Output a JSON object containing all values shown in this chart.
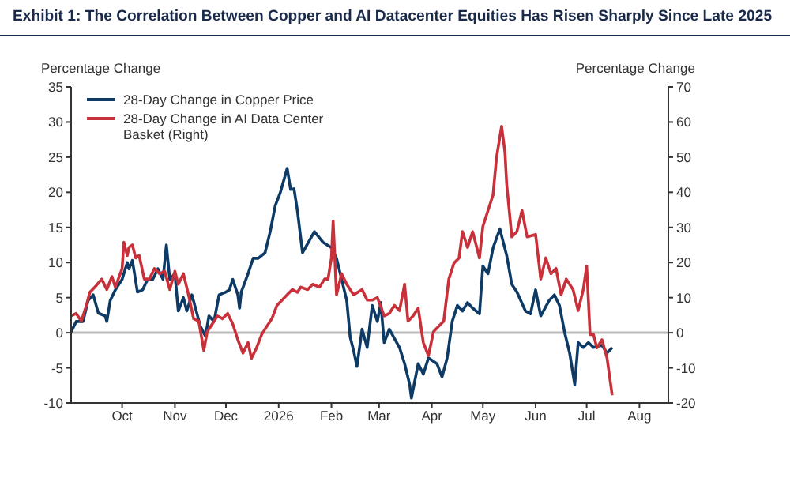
{
  "chart_data": {
    "type": "line",
    "title": "Exhibit 1: The Correlation Between Copper and AI Datacenter Equities Has Risen Sharply Since Late 2025",
    "ylabel": "Percentage Change",
    "y2label": "Percentage Change",
    "legend": "top left",
    "marker": "none",
    "grid": false,
    "xlim": [
      "2025-09-01",
      "2026-08-18"
    ],
    "xticks": [
      {
        "value": "2025-10-01",
        "label": "Oct"
      },
      {
        "value": "2025-11-01",
        "label": "Nov"
      },
      {
        "value": "2025-12-01",
        "label": "Dec"
      },
      {
        "value": "2026-01-01",
        "label": "2026"
      },
      {
        "value": "2026-02-01",
        "label": "Feb"
      },
      {
        "value": "2026-03-01",
        "label": "Mar"
      },
      {
        "value": "2026-04-01",
        "label": "Apr"
      },
      {
        "value": "2026-05-01",
        "label": "May"
      },
      {
        "value": "2026-06-01",
        "label": "Jun"
      },
      {
        "value": "2026-07-01",
        "label": "Jul"
      },
      {
        "value": "2026-08-01",
        "label": "Aug"
      }
    ],
    "ylim": [
      -10,
      35
    ],
    "yticks": [
      -10,
      -5,
      0,
      5,
      10,
      15,
      20,
      25,
      30,
      35
    ],
    "y2lim": [
      -20,
      70
    ],
    "y2ticks": [
      -20,
      -10,
      0,
      10,
      20,
      30,
      40,
      50,
      60,
      70
    ],
    "ref_lines": [
      {
        "axis": "y",
        "value": 0,
        "color": "#bbbbbb"
      }
    ],
    "series": [
      {
        "name": "28-Day Change in Copper Price",
        "color": "#0d3b66",
        "x": [
          "2025-09-01",
          "2025-09-04",
          "2025-09-08",
          "2025-09-11",
          "2025-09-14",
          "2025-09-17",
          "2025-09-21",
          "2025-09-22",
          "2025-09-24",
          "2025-09-27",
          "2025-10-01",
          "2025-10-04",
          "2025-10-05",
          "2025-10-07",
          "2025-10-10",
          "2025-10-13",
          "2025-10-16",
          "2025-10-19",
          "2025-10-22",
          "2025-10-25",
          "2025-10-27",
          "2025-10-29",
          "2025-11-01",
          "2025-11-03",
          "2025-11-06",
          "2025-11-08",
          "2025-11-11",
          "2025-11-16",
          "2025-11-19",
          "2025-11-21",
          "2025-11-24",
          "2025-11-27",
          "2025-12-01",
          "2025-12-03",
          "2025-12-05",
          "2025-12-08",
          "2025-12-09",
          "2025-12-10",
          "2025-12-14",
          "2025-12-17",
          "2025-12-20",
          "2025-12-24",
          "2025-12-27",
          "2025-12-30",
          "2026-01-02",
          "2026-01-06",
          "2026-01-08",
          "2026-01-10",
          "2026-01-12",
          "2026-01-15",
          "2026-01-22",
          "2026-01-27",
          "2026-02-01",
          "2026-02-04",
          "2026-02-07",
          "2026-02-10",
          "2026-02-12",
          "2026-02-14",
          "2026-02-16",
          "2026-02-19",
          "2026-02-22",
          "2026-02-25",
          "2026-02-28",
          "2026-03-02",
          "2026-03-04",
          "2026-03-07",
          "2026-03-13",
          "2026-03-16",
          "2026-03-19",
          "2026-03-20",
          "2026-03-24",
          "2026-03-27",
          "2026-03-30",
          "2026-04-04",
          "2026-04-07",
          "2026-04-10",
          "2026-04-13",
          "2026-04-16",
          "2026-04-19",
          "2026-04-22",
          "2026-04-25",
          "2026-04-29",
          "2026-05-01",
          "2026-05-04",
          "2026-05-07",
          "2026-05-11",
          "2026-05-12",
          "2026-05-15",
          "2026-05-18",
          "2026-05-21",
          "2026-05-26",
          "2026-05-29",
          "2026-06-01",
          "2026-06-04",
          "2026-06-09",
          "2026-06-12",
          "2026-06-15",
          "2026-06-18",
          "2026-06-21",
          "2026-06-24",
          "2026-06-26",
          "2026-06-29",
          "2026-07-02",
          "2026-07-05",
          "2026-07-10",
          "2026-07-13",
          "2026-07-16"
        ],
        "values": [
          0.1,
          1.6,
          1.6,
          4.6,
          5.4,
          2.8,
          2.4,
          1.6,
          4.6,
          6.1,
          7.6,
          10,
          9.1,
          10.3,
          5.8,
          6.1,
          7.6,
          7.6,
          9.1,
          7.6,
          12.5,
          7.6,
          8.4,
          3.1,
          5,
          3.1,
          5.4,
          0.9,
          -0.5,
          2.4,
          1.6,
          5.4,
          5.8,
          6.1,
          7.6,
          5.4,
          3.5,
          5.8,
          8.4,
          10.6,
          10.6,
          11.4,
          14.4,
          18.1,
          20,
          23.4,
          20.4,
          20.5,
          17.4,
          11.4,
          14.4,
          12.9,
          12.1,
          10.6,
          7.6,
          4.6,
          -0.6,
          -2.5,
          -4.8,
          0.5,
          -2.1,
          3.9,
          1.6,
          4.3,
          -1.4,
          0.5,
          -2.1,
          -4.4,
          -7.4,
          -9.3,
          -4.4,
          -5.9,
          -3.6,
          -4.4,
          -6.3,
          -3.6,
          1.6,
          3.9,
          3.1,
          4.3,
          3.5,
          2.7,
          9.5,
          8.4,
          12.1,
          14.8,
          13.8,
          11,
          6.9,
          5.8,
          3.1,
          2.7,
          6.1,
          2.4,
          4.6,
          5.4,
          3.9,
          0.1,
          -2.9,
          -7.4,
          -1.4,
          -2.1,
          -1.4,
          -2.1,
          -1.8,
          -2.9,
          -2.1
        ]
      },
      {
        "name": "28-Day Change in AI Data Center Basket (Right)",
        "color": "#c8313a",
        "axis": "y2",
        "x": [
          "2025-09-01",
          "2025-09-04",
          "2025-09-07",
          "2025-09-10",
          "2025-09-12",
          "2025-09-15",
          "2025-09-19",
          "2025-09-22",
          "2025-09-25",
          "2025-09-27",
          "2025-10-01",
          "2025-10-02",
          "2025-10-04",
          "2025-10-05",
          "2025-10-07",
          "2025-10-09",
          "2025-10-11",
          "2025-10-14",
          "2025-10-17",
          "2025-10-20",
          "2025-10-23",
          "2025-10-26",
          "2025-10-29",
          "2025-11-01",
          "2025-11-03",
          "2025-11-06",
          "2025-11-09",
          "2025-11-12",
          "2025-11-15",
          "2025-11-18",
          "2025-11-20",
          "2025-11-23",
          "2025-11-26",
          "2025-11-29",
          "2025-12-02",
          "2025-12-05",
          "2025-12-08",
          "2025-12-11",
          "2025-12-14",
          "2025-12-16",
          "2025-12-19",
          "2025-12-22",
          "2025-12-25",
          "2025-12-28",
          "2025-12-31",
          "2026-01-03",
          "2026-01-06",
          "2026-01-09",
          "2026-01-12",
          "2026-01-14",
          "2026-01-18",
          "2026-01-21",
          "2026-01-25",
          "2026-01-28",
          "2026-01-30",
          "2026-02-01",
          "2026-02-02",
          "2026-02-04",
          "2026-02-07",
          "2026-02-10",
          "2026-02-14",
          "2026-02-19",
          "2026-02-22",
          "2026-02-25",
          "2026-02-28",
          "2026-03-04",
          "2026-03-07",
          "2026-03-10",
          "2026-03-13",
          "2026-03-16",
          "2026-03-18",
          "2026-03-21",
          "2026-03-24",
          "2026-03-27",
          "2026-03-30",
          "2026-04-02",
          "2026-04-05",
          "2026-04-08",
          "2026-04-11",
          "2026-04-14",
          "2026-04-17",
          "2026-04-19",
          "2026-04-22",
          "2026-04-25",
          "2026-04-29",
          "2026-05-01",
          "2026-05-04",
          "2026-05-07",
          "2026-05-09",
          "2026-05-11",
          "2026-05-12",
          "2026-05-14",
          "2026-05-15",
          "2026-05-18",
          "2026-05-21",
          "2026-05-24",
          "2026-05-27",
          "2026-06-01",
          "2026-06-04",
          "2026-06-07",
          "2026-06-10",
          "2026-06-13",
          "2026-06-16",
          "2026-06-19",
          "2026-06-23",
          "2026-06-26",
          "2026-06-29",
          "2026-07-01",
          "2026-07-03",
          "2026-07-05",
          "2026-07-07",
          "2026-07-10",
          "2026-07-13",
          "2026-07-16"
        ],
        "values": [
          4.8,
          5.5,
          3.3,
          7.8,
          11.5,
          13,
          15.3,
          12.3,
          16,
          13,
          18.3,
          25.8,
          22,
          24.3,
          25,
          21.3,
          22,
          15.3,
          15.3,
          18.3,
          16.8,
          17.5,
          12.3,
          17.5,
          13.8,
          16.8,
          10.8,
          4,
          3.3,
          -5,
          0.3,
          2.5,
          4.8,
          4,
          5.5,
          2.5,
          -2,
          -5.8,
          -2.8,
          -7.3,
          -4.3,
          -0.5,
          1.8,
          4,
          7.8,
          9.3,
          10.8,
          12.3,
          11.5,
          13,
          12.3,
          13.8,
          13,
          15.3,
          15.3,
          21.3,
          31.8,
          10.8,
          16.8,
          13.8,
          10.8,
          12.3,
          9.3,
          9.3,
          10,
          4.8,
          5.5,
          7.8,
          6.3,
          13.8,
          3.3,
          4.8,
          7,
          -2.8,
          -6.5,
          0.3,
          1.8,
          3.3,
          15.3,
          19.8,
          21.3,
          28.8,
          24.3,
          28.8,
          21.3,
          30.3,
          34.8,
          39.3,
          49.8,
          55.8,
          58.8,
          51.3,
          42.3,
          27.3,
          28.8,
          34.8,
          27.3,
          28,
          15.3,
          21.3,
          16.8,
          18.3,
          10.8,
          15.3,
          12.3,
          6.3,
          12.3,
          19,
          -0.5,
          -0.5,
          -4.3,
          -2,
          -7.3,
          -17.8
        ]
      }
    ]
  }
}
